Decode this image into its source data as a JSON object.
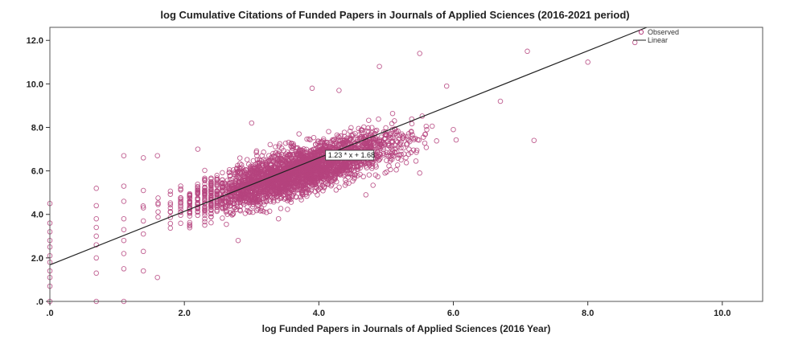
{
  "chart_data": {
    "type": "scatter",
    "title": "log Cumulative Citations of Funded Papers in Journals of Applied Sciences (2016-2021 period)",
    "xlabel": "log  Funded Papers in Journals of Applied Sciences (2016 Year)",
    "ylabel": "",
    "xlim": [
      0,
      10.6
    ],
    "ylim": [
      0,
      12.6
    ],
    "x_ticks": [
      ".0",
      "2.0",
      "4.0",
      "6.0",
      "8.0",
      "10.0"
    ],
    "y_ticks": [
      ".0",
      "2.0",
      "4.0",
      "6.0",
      "8.0",
      "10.0",
      "12.0"
    ],
    "x_tick_values": [
      0,
      2,
      4,
      6,
      8,
      10
    ],
    "y_tick_values": [
      0,
      2,
      4,
      6,
      8,
      10,
      12
    ],
    "legend": {
      "position": "top-right",
      "observed_label": "Observed",
      "linear_label": "Linear"
    },
    "fit_line": {
      "slope": 1.23,
      "intercept": 1.68,
      "label": "1.23 * x + 1.68"
    },
    "point_count": 3200,
    "colors": {
      "points": "#b5437e",
      "fit_line": "#222222",
      "frame": "#555555"
    },
    "grid": false,
    "series": [
      {
        "name": "Observed",
        "points": [
          [
            0,
            0
          ],
          [
            0,
            0.7
          ],
          [
            0,
            1.1
          ],
          [
            0,
            1.4
          ],
          [
            0,
            1.8
          ],
          [
            0,
            2.1
          ],
          [
            0,
            2.5
          ],
          [
            0,
            2.8
          ],
          [
            0,
            3.2
          ],
          [
            0,
            3.6
          ],
          [
            0,
            4.5
          ],
          [
            0.69,
            0.0
          ],
          [
            0.69,
            1.3
          ],
          [
            0.69,
            2.0
          ],
          [
            0.69,
            2.6
          ],
          [
            0.69,
            3.0
          ],
          [
            0.69,
            3.4
          ],
          [
            0.69,
            3.8
          ],
          [
            0.69,
            4.4
          ],
          [
            0.69,
            5.2
          ],
          [
            1.1,
            0.0
          ],
          [
            1.1,
            1.5
          ],
          [
            1.1,
            2.2
          ],
          [
            1.1,
            2.8
          ],
          [
            1.1,
            3.3
          ],
          [
            1.1,
            3.8
          ],
          [
            1.1,
            4.6
          ],
          [
            1.1,
            5.3
          ],
          [
            1.1,
            6.7
          ],
          [
            1.39,
            1.4
          ],
          [
            1.39,
            2.3
          ],
          [
            1.39,
            3.1
          ],
          [
            1.39,
            3.7
          ],
          [
            1.39,
            4.3
          ],
          [
            1.39,
            5.1
          ],
          [
            1.39,
            6.6
          ],
          [
            4.7,
            4.9
          ],
          [
            5.5,
            5.9
          ],
          [
            6.7,
            9.2
          ],
          [
            7.2,
            7.4
          ],
          [
            8.0,
            11.0
          ],
          [
            8.7,
            11.9
          ],
          [
            7.1,
            11.5
          ],
          [
            5.5,
            11.4
          ],
          [
            3.9,
            9.8
          ],
          [
            4.9,
            10.8
          ],
          [
            2.2,
            7.0
          ],
          [
            3.0,
            8.2
          ],
          [
            3.4,
            3.8
          ],
          [
            2.8,
            2.8
          ],
          [
            1.6,
            6.7
          ],
          [
            1.6,
            1.1
          ],
          [
            6.0,
            7.9
          ],
          [
            5.9,
            9.9
          ],
          [
            4.3,
            9.7
          ]
        ]
      }
    ]
  }
}
